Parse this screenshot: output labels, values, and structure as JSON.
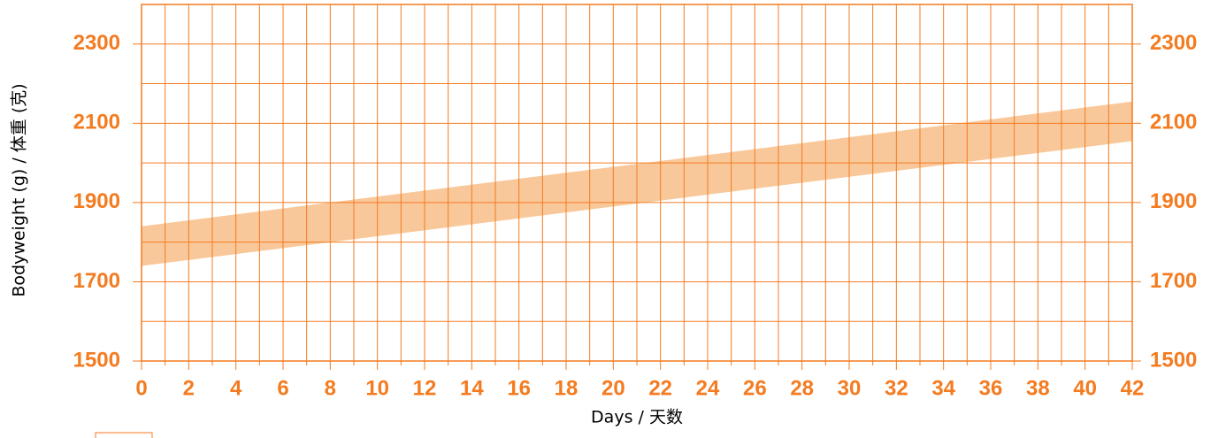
{
  "chart_data": {
    "type": "band",
    "ylabel": "Bodyweight (g) / 体重 (克)",
    "xlabel": "Days / 天数",
    "x": [
      0,
      42
    ],
    "upper": [
      1840,
      2155
    ],
    "lower": [
      1740,
      2055
    ],
    "band_color": "#f9c89a",
    "axis_color": "#f47b20",
    "xlim": [
      0,
      42
    ],
    "xticks": [
      0,
      2,
      4,
      6,
      8,
      10,
      12,
      14,
      16,
      18,
      20,
      22,
      24,
      26,
      28,
      30,
      32,
      34,
      36,
      38,
      40,
      42
    ],
    "x_minor_grid": [
      1,
      3,
      5,
      7,
      9,
      11,
      13,
      15,
      17,
      19,
      21,
      23,
      25,
      27,
      29,
      31,
      33,
      35,
      37,
      39,
      41
    ],
    "ylim": [
      1500,
      2400
    ],
    "yticks": [
      1500,
      1700,
      1900,
      2100,
      2300
    ],
    "y_minor_grid": [
      1600,
      1800,
      2000,
      2200
    ],
    "y2lim": [
      1500,
      2400
    ],
    "y2ticks": [
      1500,
      1700,
      1900,
      2100,
      2300
    ],
    "grid": true
  }
}
